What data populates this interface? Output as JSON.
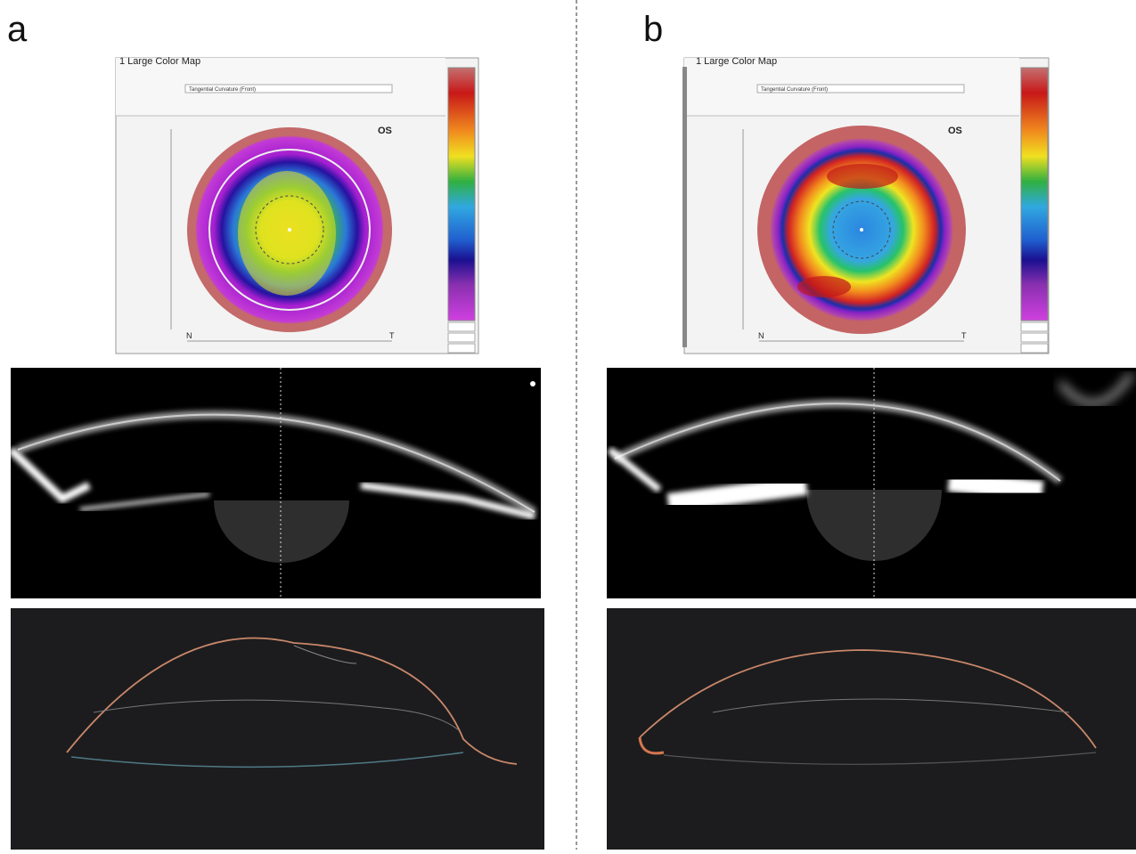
{
  "panels": [
    {
      "label": "a",
      "map": {
        "title": "1 Large Color Map",
        "dropdown": "Tangential Curvature (Front)",
        "eye": "OS",
        "nasal": "N",
        "temporal": "T"
      }
    },
    {
      "label": "b",
      "map": {
        "title": "1 Large Color Map",
        "dropdown": "Tangential Curvature (Front)",
        "eye": "OS",
        "nasal": "N",
        "temporal": "T"
      }
    }
  ]
}
